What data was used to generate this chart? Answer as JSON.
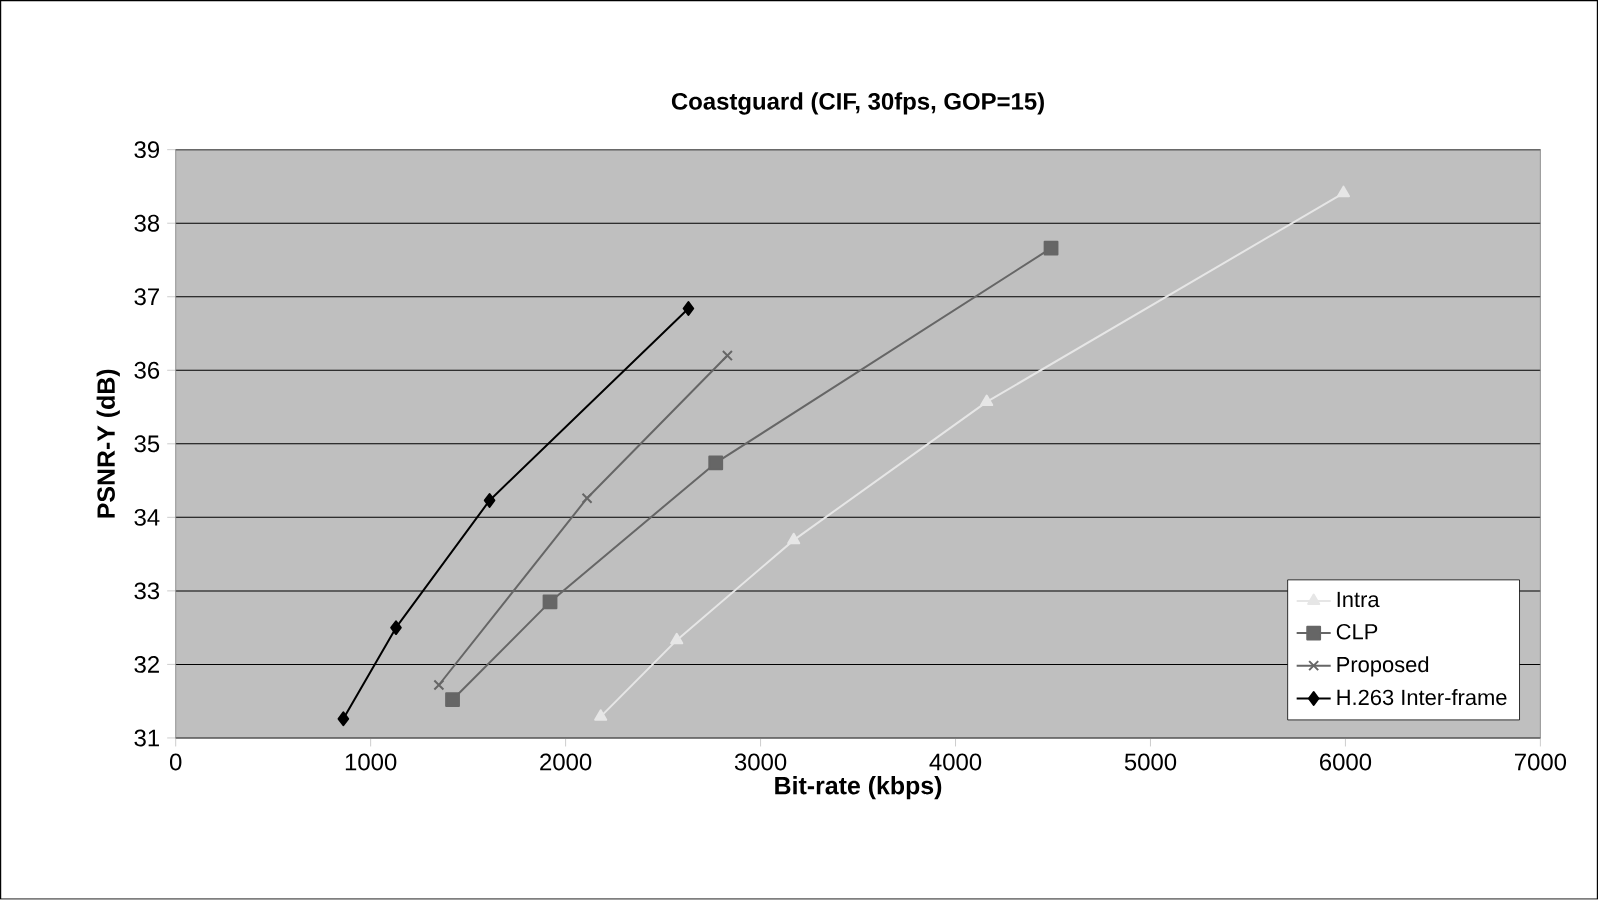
{
  "chart_data": {
    "type": "line",
    "title": "Coastguard (CIF, 30fps, GOP=15)",
    "xlabel": "Bit-rate (kbps)",
    "ylabel": "PSNR-Y (dB)",
    "xlim": [
      0,
      7000
    ],
    "xticks": [
      0,
      1000,
      2000,
      3000,
      4000,
      5000,
      6000,
      7000
    ],
    "ylim": [
      31,
      39
    ],
    "yticks": [
      31,
      32,
      33,
      34,
      35,
      36,
      37,
      38,
      39
    ],
    "grid": "y",
    "legend": "bottom right",
    "series": [
      {
        "name": "Intra",
        "color": "#e6e6e6",
        "marker": "triangle",
        "x": [
          2180,
          2570,
          3170,
          4160,
          5990
        ],
        "values": [
          31.29,
          32.33,
          33.69,
          35.57,
          38.41
        ]
      },
      {
        "name": "CLP",
        "color": "#666666",
        "marker": "square",
        "x": [
          1420,
          1920,
          2770,
          4490
        ],
        "values": [
          31.52,
          32.85,
          34.74,
          37.66
        ]
      },
      {
        "name": "Proposed",
        "color": "#666666",
        "marker": "cross",
        "x": [
          1350,
          2110,
          2830
        ],
        "values": [
          31.72,
          34.26,
          36.2
        ]
      },
      {
        "name": "H.263 Inter-frame",
        "color": "#000000",
        "marker": "diamond",
        "x": [
          860,
          1130,
          1610,
          2630
        ],
        "values": [
          31.26,
          32.5,
          34.23,
          36.84
        ]
      }
    ]
  }
}
